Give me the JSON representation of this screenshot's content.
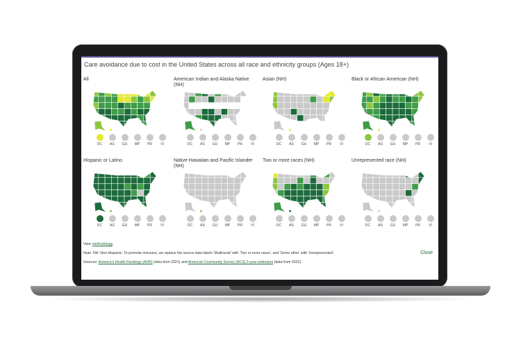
{
  "title": "Care avoidance due to cost in the United States across all race and ethnicity groups (Ages 18+)",
  "palette": {
    "d": "#1d6b3c",
    "m": "#3f9c48",
    "l": "#8dc63f",
    "y": "#e3e82c",
    "g": "#c9c9c9"
  },
  "territories": [
    "DC",
    "AS",
    "GU",
    "MP",
    "PR",
    "VI"
  ],
  "panels": [
    {
      "label": "All",
      "grid": "lmlmyyylyl mmmmyylmly lmmmdmmmmm mddmmdmddd lmdddddmdm gmddddddmg",
      "ak": "l",
      "hi": "y",
      "dots": [
        "y",
        "g",
        "g",
        "g",
        "g",
        "g"
      ]
    },
    {
      "label": "American Indian and Alaska Native (NH)",
      "grid": "ggmdgmgggg gmggdgggg g gggddgdggg ggmdddgggg gggddggggg gggggggggg",
      "ak": "m",
      "hi": "g",
      "dots": [
        "g",
        "g",
        "g",
        "g",
        "g",
        "g"
      ]
    },
    {
      "label": "Asian (NH)",
      "grid": "lgggggggyy lgggggmgyl lggggggggl gggdgggggg ggggdgggg g gggggggggg",
      "ak": "g",
      "hi": "y",
      "dots": [
        "g",
        "g",
        "g",
        "g",
        "g",
        "g"
      ]
    },
    {
      "label": "Black or African American (NH)",
      "grid": "mldmdmdmll mmlmdmmdml mlmddddmmm mmmdddddmd mmmddddddm gmmdddddmg",
      "ak": "m",
      "hi": "y",
      "dots": [
        "l",
        "g",
        "g",
        "g",
        "g",
        "g"
      ]
    },
    {
      "label": "Hispanic or Latino",
      "grid": "ddddddddmd dddddddddd dddddmdmdd ddddddmgdd dddddddddg gddddddddg",
      "ak": "d",
      "hi": "l",
      "dots": [
        "d",
        "g",
        "g",
        "g",
        "g",
        "g"
      ]
    },
    {
      "label": "Native Hawaiian and Pacific Islander (NH)",
      "grid": "gggggggggg gggggggggg gggggggggg gggggggggg gggggggggg gggggggggg",
      "ak": "g",
      "hi": "l",
      "dots": [
        "g",
        "g",
        "g",
        "g",
        "g",
        "g"
      ]
    },
    {
      "label": "Two or more races (NH)",
      "grid": "ygggggmgmg lgggmgdggg lgmdmdddlg gmddddddlg gmddddddmg gggddddddg",
      "ak": "m",
      "hi": "d",
      "dots": [
        "g",
        "g",
        "g",
        "g",
        "g",
        "g"
      ]
    },
    {
      "label": "Unrepresented race (NH)",
      "grid": "gggggggdgd gggggggggd ggggggggmg gggggggdgg gggggggggg gggggggggg",
      "ak": "g",
      "hi": "g",
      "dots": [
        "g",
        "g",
        "g",
        "g",
        "g",
        "g"
      ]
    }
  ],
  "footer": {
    "view_prefix": "View ",
    "methodology_link": "methodology",
    "view_suffix": ".",
    "note": "Note. NH: Non-Hispanic. To promote inclusion, we replace the source data labels 'Multiracial' with 'Two or more races', and 'Some other' with 'Unrepresented'.",
    "sources_prefix": "Sources: ",
    "ahr_link": "America's Health Rankings (AHR)",
    "ahr_suffix": " (data from 2021) and ",
    "acs_link": "American Community Survey (ACS) 5-year estimates",
    "acs_suffix": " (data from 2022).",
    "close_label": "Close"
  }
}
